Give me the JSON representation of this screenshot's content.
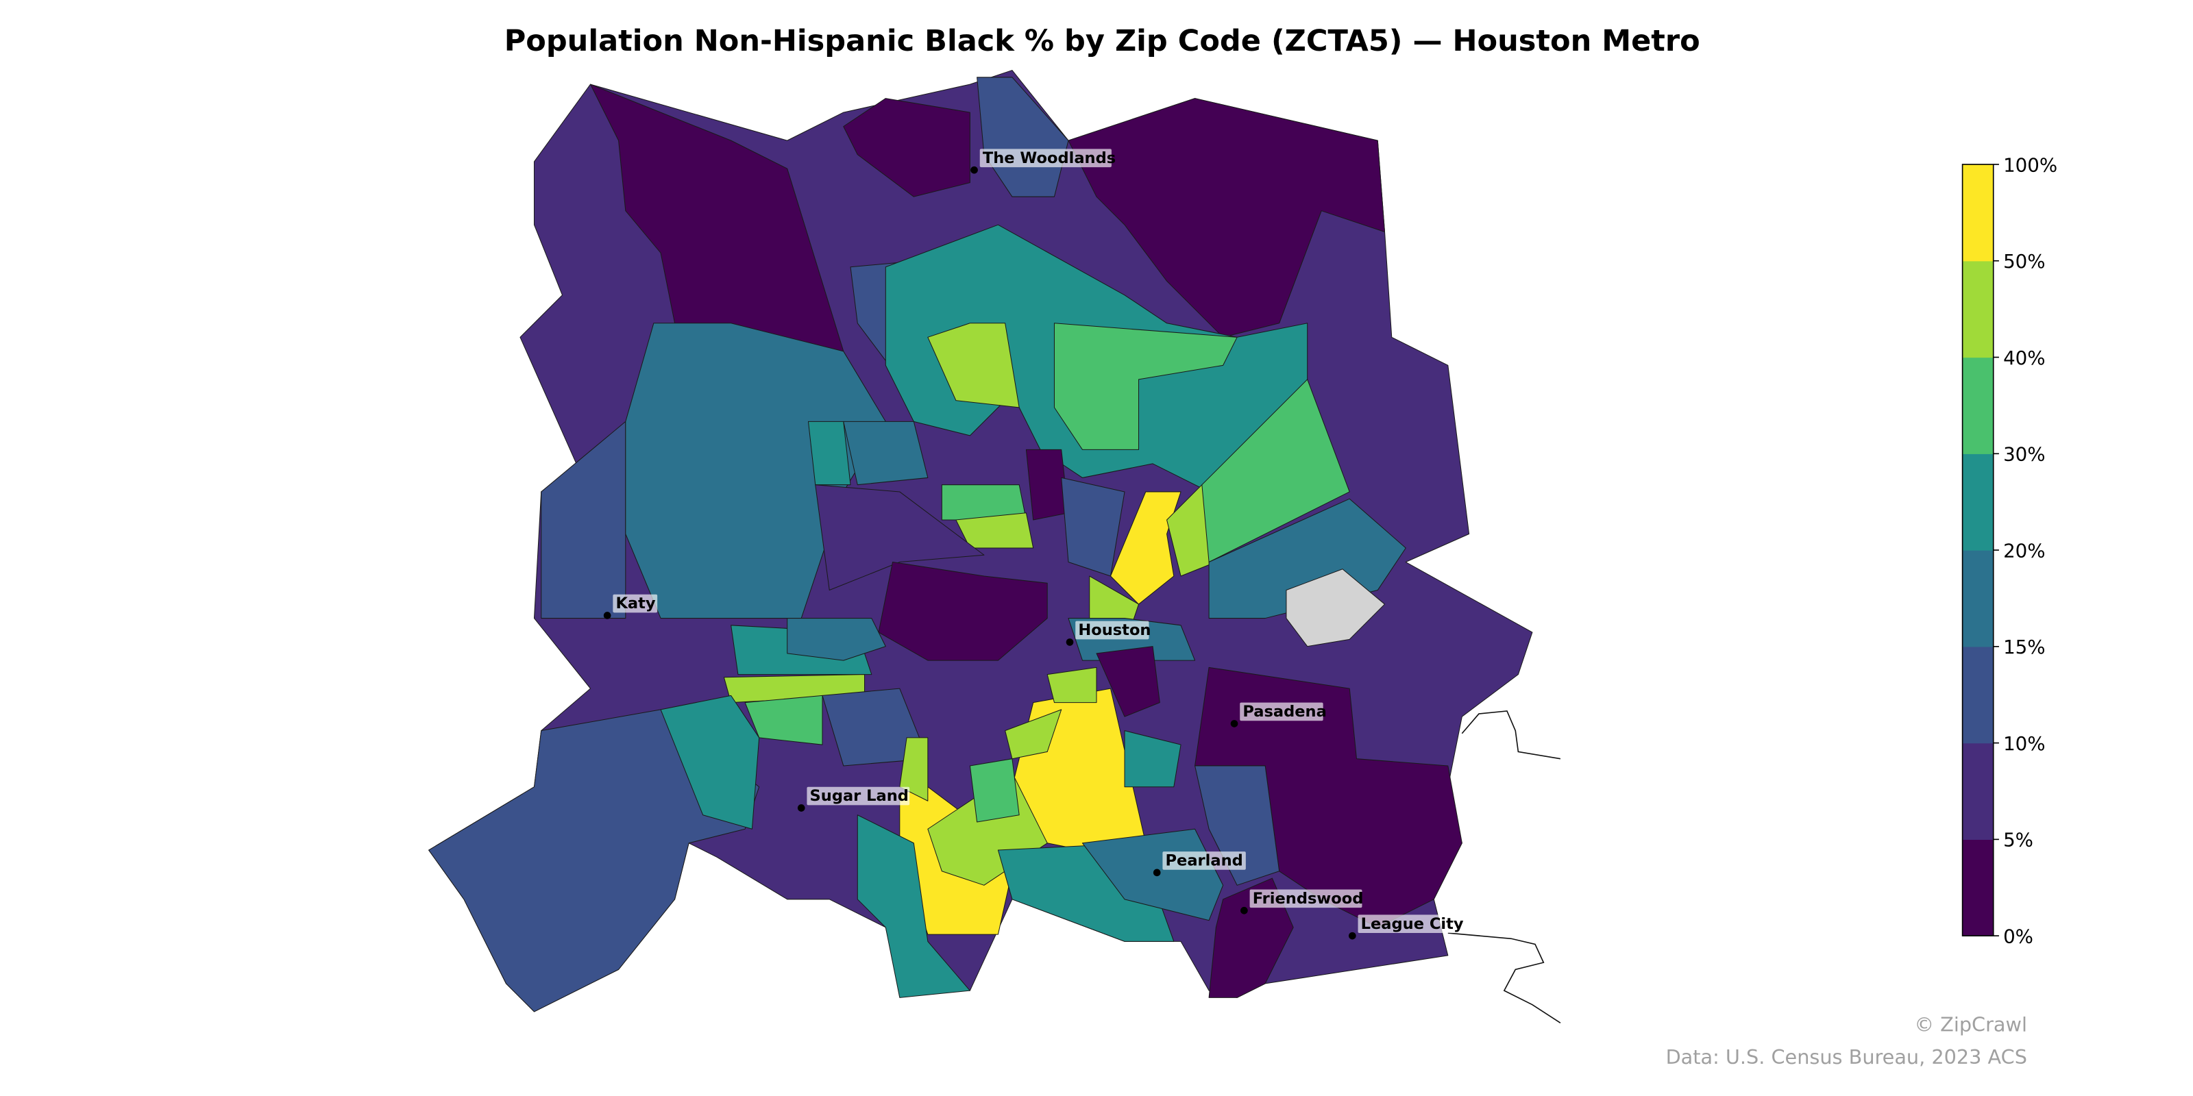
{
  "title": "Population Non-Hispanic Black % by Zip Code (ZCTA5) — Houston Metro",
  "colorbar": {
    "ticks": [
      "0%",
      "5%",
      "10%",
      "15%",
      "20%",
      "30%",
      "40%",
      "50%",
      "100%"
    ],
    "bins": [
      {
        "range": "0-5%",
        "color": "#440154"
      },
      {
        "range": "5-10%",
        "color": "#472d7b"
      },
      {
        "range": "10-15%",
        "color": "#3b528b"
      },
      {
        "range": "15-20%",
        "color": "#2c728e"
      },
      {
        "range": "20-30%",
        "color": "#21918c"
      },
      {
        "range": "30-40%",
        "color": "#4ac16d"
      },
      {
        "range": "40-50%",
        "color": "#a0da39"
      },
      {
        "range": "50-100%",
        "color": "#fde725"
      }
    ],
    "no_data_color": "#d3d3d3"
  },
  "cities": [
    {
      "name": "The Woodlands"
    },
    {
      "name": "Katy"
    },
    {
      "name": "Houston"
    },
    {
      "name": "Pasadena"
    },
    {
      "name": "Sugar Land"
    },
    {
      "name": "Pearland"
    },
    {
      "name": "Friendswood"
    },
    {
      "name": "League City"
    }
  ],
  "credits": {
    "copyright": "© ZipCrawl",
    "source": "Data: U.S. Census Bureau, 2023 ACS"
  }
}
